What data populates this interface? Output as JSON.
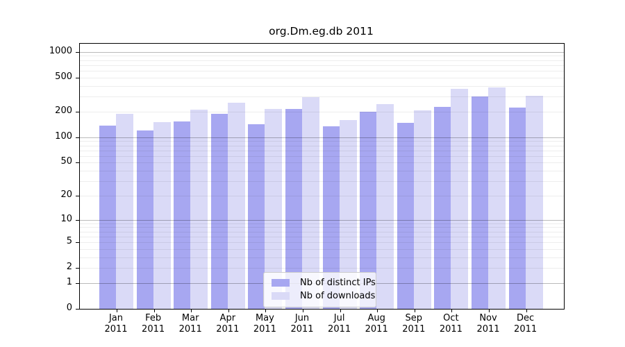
{
  "title": "org.Dm.eg.db 2011",
  "chart_data": {
    "type": "bar",
    "title": "org.Dm.eg.db 2011",
    "categories": [
      "Jan 2011",
      "Feb 2011",
      "Mar 2011",
      "Apr 2011",
      "May 2011",
      "Jun 2011",
      "Jul 2011",
      "Aug 2011",
      "Sep 2011",
      "Oct 2011",
      "Nov 2011",
      "Dec 2011"
    ],
    "series": [
      {
        "name": "Nb of distinct IPs",
        "color": "#a7a7f1",
        "values": [
          138,
          119,
          154,
          188,
          142,
          213,
          134,
          199,
          147,
          228,
          300,
          225
        ]
      },
      {
        "name": "Nb of downloads",
        "color": "#dadaf7",
        "values": [
          190,
          150,
          212,
          252,
          215,
          298,
          159,
          245,
          208,
          368,
          381,
          305
        ]
      }
    ],
    "xlabel": "",
    "ylabel": "",
    "y_axis": {
      "scale": "log1p",
      "tick_values": [
        0,
        1,
        2,
        5,
        10,
        20,
        50,
        100,
        200,
        500,
        1000
      ],
      "tick_labels": [
        "0",
        "1",
        "2",
        "5",
        "10",
        "20",
        "50",
        "100",
        "200",
        "500",
        "1000"
      ],
      "decade_gridlines": [
        1,
        10,
        100,
        1000
      ],
      "minor_gridlines": [
        3,
        4,
        6,
        7,
        8,
        9,
        30,
        40,
        60,
        70,
        80,
        90,
        300,
        400,
        600,
        700,
        800,
        900
      ],
      "range": [
        0,
        1240
      ]
    },
    "grid": true,
    "legend_position": "lower center"
  },
  "colors": {
    "bar_distinct_ips": "#a7a7f1",
    "bar_downloads": "#dadaf7",
    "grid_decade": "rgba(0,0,0,0.27)",
    "grid_light": "rgba(0,0,0,0.07)",
    "axis": "#000000",
    "legend_border": "#cccccc"
  }
}
